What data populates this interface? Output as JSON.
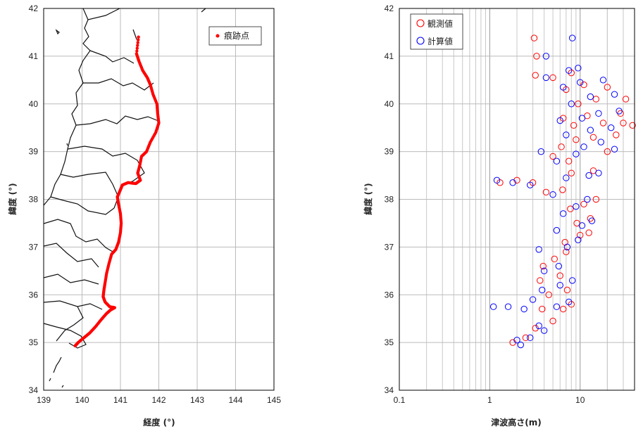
{
  "chart_data": [
    {
      "type": "scatter",
      "xlabel": "経度 (°)",
      "ylabel": "緯度 (°)",
      "xlim": [
        139,
        145
      ],
      "ylim": [
        34,
        42
      ],
      "xticks": [
        "139",
        "140",
        "141",
        "142",
        "143",
        "144",
        "145"
      ],
      "yticks": [
        "34",
        "35",
        "36",
        "37",
        "38",
        "39",
        "40",
        "41",
        "42"
      ],
      "grid": true,
      "legend_position": "top-right",
      "series": [
        {
          "name": "痕跡点",
          "color": "#ff0000",
          "points": [
            [
              139.82,
              34.93
            ],
            [
              139.9,
              35.0
            ],
            [
              140.05,
              35.1
            ],
            [
              140.2,
              35.2
            ],
            [
              140.35,
              35.33
            ],
            [
              140.5,
              35.48
            ],
            [
              140.63,
              35.6
            ],
            [
              140.74,
              35.68
            ],
            [
              140.85,
              35.73
            ],
            [
              140.72,
              35.75
            ],
            [
              140.6,
              35.85
            ],
            [
              140.55,
              35.96
            ],
            [
              140.57,
              36.1
            ],
            [
              140.6,
              36.25
            ],
            [
              140.64,
              36.45
            ],
            [
              140.7,
              36.65
            ],
            [
              140.77,
              36.85
            ],
            [
              140.88,
              36.95
            ],
            [
              140.95,
              37.1
            ],
            [
              141.0,
              37.3
            ],
            [
              141.02,
              37.5
            ],
            [
              141.0,
              37.7
            ],
            [
              140.95,
              37.9
            ],
            [
              140.92,
              38.05
            ],
            [
              141.0,
              38.2
            ],
            [
              141.05,
              38.3
            ],
            [
              141.2,
              38.35
            ],
            [
              141.4,
              38.33
            ],
            [
              141.52,
              38.4
            ],
            [
              141.45,
              38.55
            ],
            [
              141.5,
              38.7
            ],
            [
              141.55,
              38.9
            ],
            [
              141.68,
              39.0
            ],
            [
              141.78,
              39.2
            ],
            [
              141.92,
              39.4
            ],
            [
              142.0,
              39.6
            ],
            [
              141.97,
              39.8
            ],
            [
              141.95,
              40.0
            ],
            [
              141.85,
              40.2
            ],
            [
              141.78,
              40.4
            ],
            [
              141.7,
              40.55
            ],
            [
              141.58,
              40.7
            ],
            [
              141.48,
              40.9
            ],
            [
              141.42,
              41.05
            ],
            [
              141.47,
              41.4
            ]
          ]
        }
      ]
    },
    {
      "type": "scatter",
      "xlabel": "津波高さ(m)",
      "ylabel": "緯度 (°)",
      "xscale": "log",
      "xlim": [
        0.1,
        40
      ],
      "ylim": [
        34,
        42
      ],
      "xticks": [
        "0.1",
        "1",
        "10"
      ],
      "yticks": [
        "34",
        "35",
        "36",
        "37",
        "38",
        "39",
        "40",
        "41",
        "42"
      ],
      "grid": true,
      "legend_position": "top-left",
      "series": [
        {
          "name": "観測値",
          "color": "#ff0000",
          "points": [
            [
              1.8,
              35.0
            ],
            [
              2.5,
              35.1
            ],
            [
              3.2,
              35.3
            ],
            [
              5.0,
              35.45
            ],
            [
              3.8,
              35.7
            ],
            [
              6.5,
              35.7
            ],
            [
              8.0,
              35.8
            ],
            [
              4.5,
              36.0
            ],
            [
              7.2,
              36.1
            ],
            [
              3.6,
              36.3
            ],
            [
              6.0,
              36.4
            ],
            [
              3.9,
              36.6
            ],
            [
              5.2,
              36.75
            ],
            [
              7.0,
              36.9
            ],
            [
              6.8,
              37.1
            ],
            [
              10.0,
              37.25
            ],
            [
              12.5,
              37.3
            ],
            [
              9.2,
              37.5
            ],
            [
              13.0,
              37.6
            ],
            [
              7.8,
              37.8
            ],
            [
              11.0,
              37.9
            ],
            [
              15.0,
              38.0
            ],
            [
              4.2,
              38.15
            ],
            [
              6.4,
              38.2
            ],
            [
              1.3,
              38.35
            ],
            [
              2.0,
              38.4
            ],
            [
              3.0,
              38.35
            ],
            [
              8.0,
              38.55
            ],
            [
              14.0,
              38.6
            ],
            [
              7.5,
              38.8
            ],
            [
              5.0,
              38.9
            ],
            [
              6.2,
              39.1
            ],
            [
              20.0,
              39.0
            ],
            [
              9.0,
              39.25
            ],
            [
              14.0,
              39.3
            ],
            [
              25.0,
              39.35
            ],
            [
              8.5,
              39.55
            ],
            [
              18.0,
              39.6
            ],
            [
              30.0,
              39.6
            ],
            [
              38.0,
              39.55
            ],
            [
              6.5,
              39.7
            ],
            [
              12.0,
              39.75
            ],
            [
              28.0,
              39.8
            ],
            [
              9.5,
              40.0
            ],
            [
              15.0,
              40.1
            ],
            [
              32.0,
              40.1
            ],
            [
              7.0,
              40.3
            ],
            [
              11.0,
              40.4
            ],
            [
              20.0,
              40.35
            ],
            [
              5.0,
              40.55
            ],
            [
              8.0,
              40.65
            ],
            [
              3.2,
              40.6
            ],
            [
              3.3,
              41.0
            ],
            [
              3.1,
              41.38
            ]
          ]
        },
        {
          "name": "計算値",
          "color": "#0000ff",
          "points": [
            [
              2.2,
              34.95
            ],
            [
              2.0,
              35.05
            ],
            [
              2.8,
              35.1
            ],
            [
              4.0,
              35.25
            ],
            [
              3.5,
              35.35
            ],
            [
              1.1,
              35.75
            ],
            [
              1.6,
              35.75
            ],
            [
              2.4,
              35.7
            ],
            [
              3.0,
              35.9
            ],
            [
              5.5,
              35.75
            ],
            [
              7.5,
              35.85
            ],
            [
              3.8,
              36.1
            ],
            [
              6.0,
              36.2
            ],
            [
              8.2,
              36.3
            ],
            [
              4.0,
              36.5
            ],
            [
              5.8,
              36.6
            ],
            [
              3.5,
              36.95
            ],
            [
              7.2,
              37.0
            ],
            [
              9.5,
              37.15
            ],
            [
              5.5,
              37.35
            ],
            [
              10.5,
              37.45
            ],
            [
              13.5,
              37.55
            ],
            [
              6.5,
              37.7
            ],
            [
              9.0,
              37.85
            ],
            [
              12.0,
              38.0
            ],
            [
              5.0,
              38.1
            ],
            [
              1.2,
              38.4
            ],
            [
              1.8,
              38.35
            ],
            [
              2.8,
              38.3
            ],
            [
              7.0,
              38.45
            ],
            [
              12.5,
              38.5
            ],
            [
              16.0,
              38.55
            ],
            [
              5.5,
              38.8
            ],
            [
              9.0,
              38.95
            ],
            [
              3.7,
              39.0
            ],
            [
              11.0,
              39.1
            ],
            [
              17.0,
              39.2
            ],
            [
              24.0,
              39.05
            ],
            [
              7.0,
              39.35
            ],
            [
              13.0,
              39.45
            ],
            [
              22.0,
              39.5
            ],
            [
              6.0,
              39.65
            ],
            [
              10.5,
              39.7
            ],
            [
              16.0,
              39.8
            ],
            [
              27.0,
              39.85
            ],
            [
              8.0,
              40.0
            ],
            [
              13.0,
              40.15
            ],
            [
              24.0,
              40.2
            ],
            [
              6.5,
              40.35
            ],
            [
              10.0,
              40.45
            ],
            [
              18.0,
              40.5
            ],
            [
              4.2,
              40.55
            ],
            [
              7.5,
              40.7
            ],
            [
              9.5,
              40.75
            ],
            [
              4.2,
              41.0
            ],
            [
              8.2,
              41.38
            ]
          ]
        }
      ]
    }
  ]
}
